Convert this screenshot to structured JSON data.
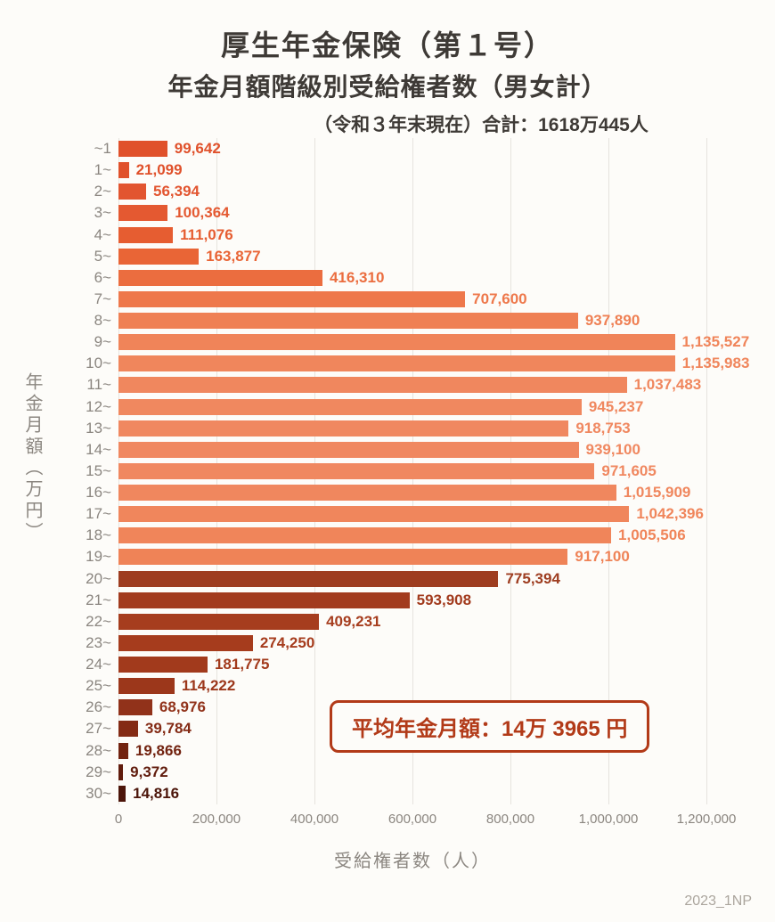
{
  "page": {
    "background": "#fdfcf9",
    "footer_note": "2023_1NP"
  },
  "chart_data": {
    "type": "bar",
    "orientation": "horizontal",
    "title": "厚生年金保険（第１号）",
    "subtitle": "年金月額階級別受給権者数（男女計）",
    "caption": "（令和３年末現在）合計：1618万445人",
    "annotation": "平均年金月額：14万 3965 円",
    "xlabel": "受給権者数（人）",
    "ylabel": "年金月額（万円）",
    "xlim": [
      0,
      1200000
    ],
    "grid": true,
    "legend": false,
    "x_ticks": [
      "0",
      "200,000",
      "400,000",
      "600,000",
      "800,000",
      "1,000,000",
      "1,200,000"
    ],
    "x_tick_values": [
      0,
      200000,
      400000,
      600000,
      800000,
      1000000,
      1200000
    ],
    "categories": [
      "~1",
      "1~",
      "2~",
      "3~",
      "4~",
      "5~",
      "6~",
      "7~",
      "8~",
      "9~",
      "10~",
      "11~",
      "12~",
      "13~",
      "14~",
      "15~",
      "16~",
      "17~",
      "18~",
      "19~",
      "20~",
      "21~",
      "22~",
      "23~",
      "24~",
      "25~",
      "26~",
      "27~",
      "28~",
      "29~",
      "30~"
    ],
    "values": [
      99642,
      21099,
      56394,
      100364,
      111076,
      163877,
      416310,
      707600,
      937890,
      1135527,
      1135983,
      1037483,
      945237,
      918753,
      939100,
      971605,
      1015909,
      1042396,
      1005506,
      917100,
      775394,
      593908,
      409231,
      274250,
      181775,
      114222,
      68976,
      39784,
      19866,
      9372,
      14816
    ],
    "labels": [
      "99,642",
      "21,099",
      "56,394",
      "100,364",
      "111,076",
      "163,877",
      "416,310",
      "707,600",
      "937,890",
      "1,135,527",
      "1,135,983",
      "1,037,483",
      "945,237",
      "918,753",
      "939,100",
      "971,605",
      "1,015,909",
      "1,042,396",
      "1,005,506",
      "917,100",
      "775,394",
      "593,908",
      "409,231",
      "274,250",
      "181,775",
      "114,222",
      "68,976",
      "39,784",
      "19,866",
      "9,372",
      "14,816"
    ],
    "colors": [
      "#e0512b",
      "#e0512b",
      "#e25530",
      "#e45931",
      "#e65d31",
      "#e96536",
      "#eb6d3f",
      "#ee784b",
      "#ef8054",
      "#f08459",
      "#f0865c",
      "#f0875e",
      "#f0885f",
      "#f08860",
      "#f08860",
      "#f08860",
      "#f0875e",
      "#f0865c",
      "#f0855a",
      "#ef8357",
      "#9e3d20",
      "#a23b1e",
      "#a63d1e",
      "#a63c1d",
      "#a23a1c",
      "#9c371b",
      "#91321a",
      "#842b15",
      "#722310",
      "#611c0d",
      "#4c150a"
    ],
    "gridline_color": "#e6e3de"
  }
}
